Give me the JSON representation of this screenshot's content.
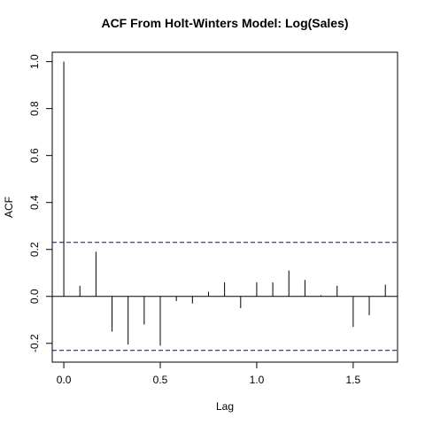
{
  "chart_data": {
    "type": "acf",
    "title": "ACF From Holt-Winters Model: Log(Sales)",
    "xlabel": "Lag",
    "ylabel": "ACF",
    "xlim": [
      -0.06,
      1.73
    ],
    "ylim": [
      -0.28,
      1.04
    ],
    "x_ticks": [
      0.0,
      0.5,
      1.0,
      1.5
    ],
    "x_tick_labels": [
      "0.0",
      "0.5",
      "1.0",
      "1.5"
    ],
    "y_ticks": [
      -0.2,
      0.0,
      0.2,
      0.4,
      0.6,
      0.8,
      1.0
    ],
    "y_tick_labels": [
      "-0.2",
      "0.0",
      "0.2",
      "0.4",
      "0.6",
      "0.8",
      "1.0"
    ],
    "confidence_bound": 0.23,
    "confidence_color": "#0000cc",
    "series": [
      {
        "lags": [
          0.0,
          0.0833,
          0.1667,
          0.25,
          0.3333,
          0.4167,
          0.5,
          0.5833,
          0.6667,
          0.75,
          0.8333,
          0.9167,
          1.0,
          1.0833,
          1.1667,
          1.25,
          1.3333,
          1.4167,
          1.5,
          1.5833,
          1.6667
        ],
        "values": [
          1.0,
          0.045,
          0.19,
          -0.15,
          -0.205,
          -0.12,
          -0.21,
          -0.02,
          -0.03,
          0.02,
          0.06,
          -0.05,
          0.06,
          0.06,
          0.11,
          0.07,
          0.005,
          0.045,
          -0.13,
          -0.08,
          0.05
        ]
      }
    ],
    "grid": false,
    "legend": "none"
  }
}
